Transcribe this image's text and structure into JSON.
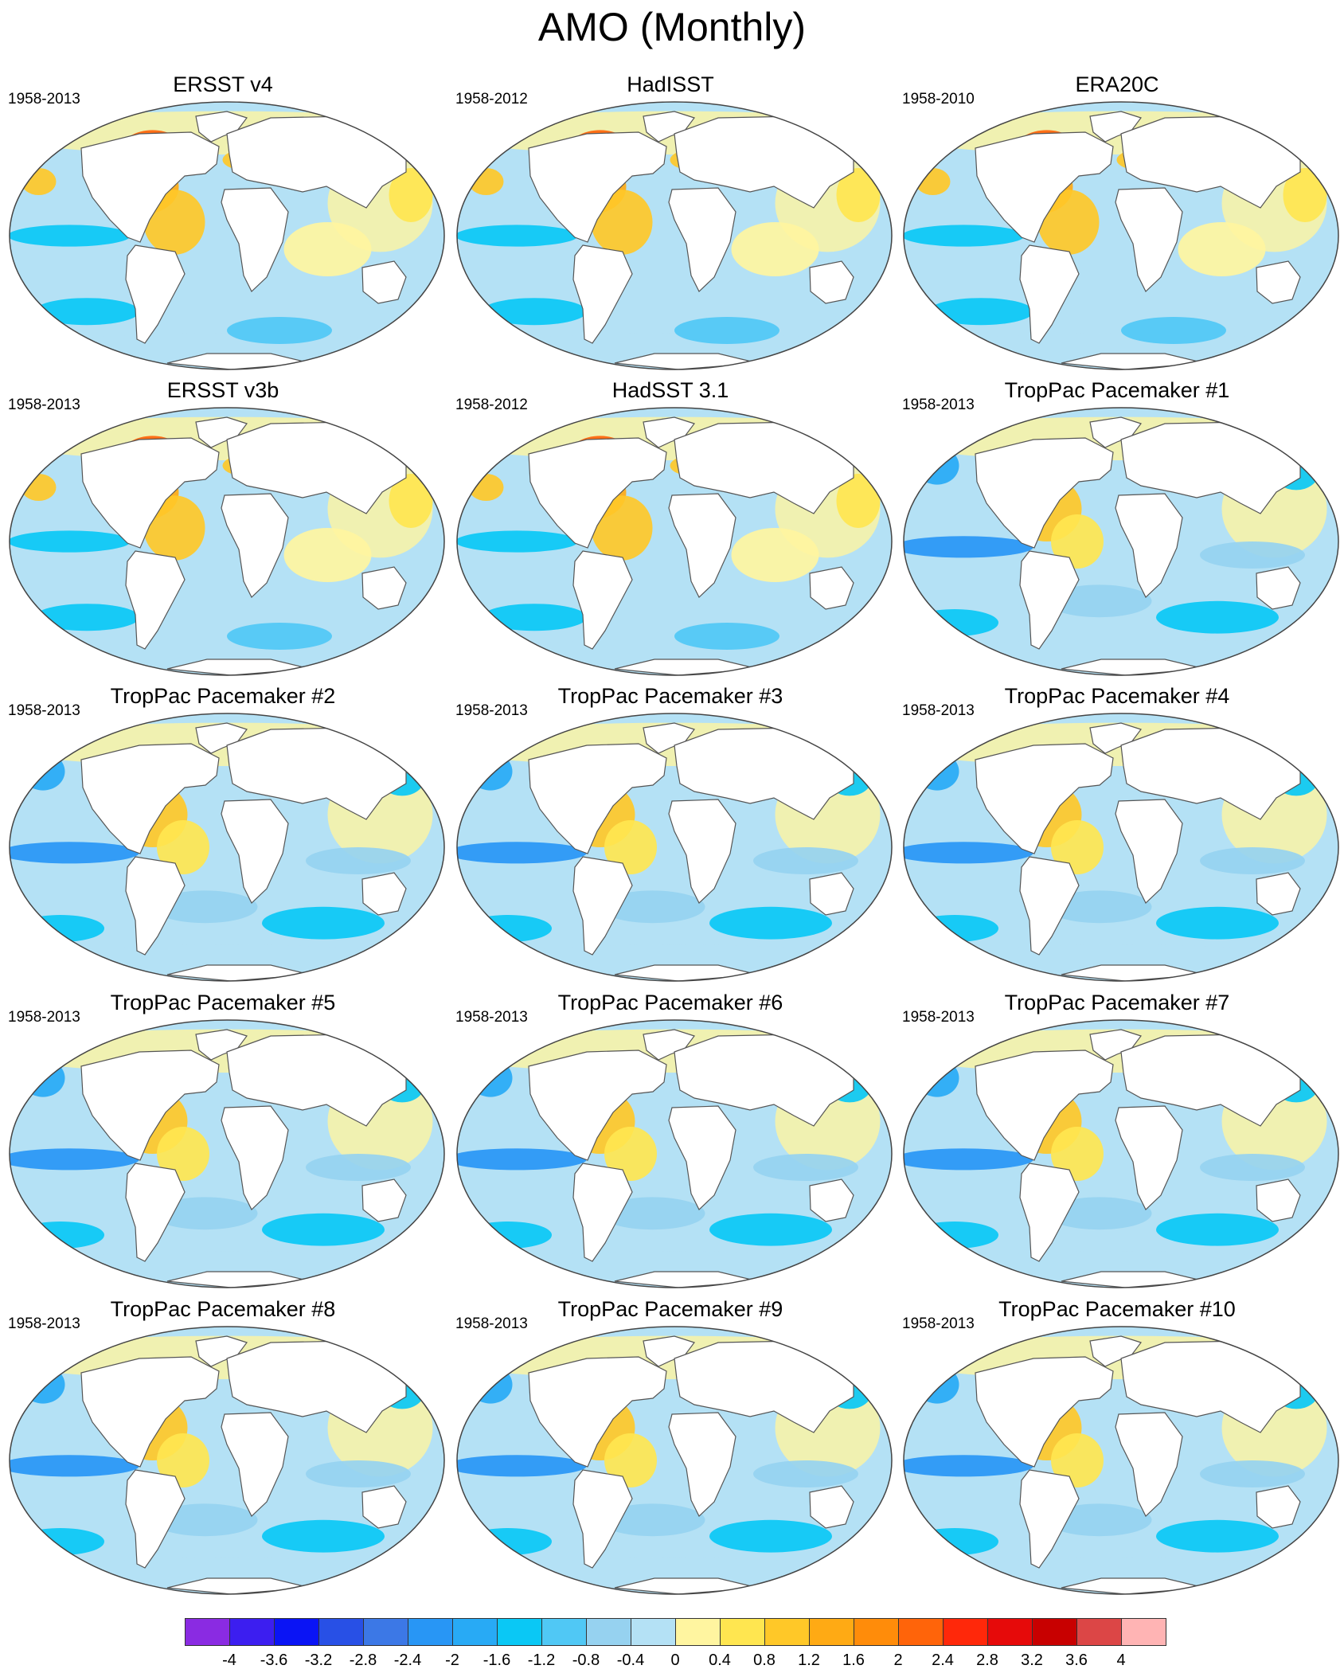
{
  "title": "AMO (Monthly)",
  "panels": [
    {
      "title": "ERSST v4",
      "period": "1958-2013"
    },
    {
      "title": "HadISST",
      "period": "1958-2012"
    },
    {
      "title": "ERA20C",
      "period": "1958-2010"
    },
    {
      "title": "ERSST v3b",
      "period": "1958-2013"
    },
    {
      "title": "HadSST 3.1",
      "period": "1958-2012"
    },
    {
      "title": "TropPac Pacemaker #1",
      "period": "1958-2013"
    },
    {
      "title": "TropPac Pacemaker #2",
      "period": "1958-2013"
    },
    {
      "title": "TropPac Pacemaker #3",
      "period": "1958-2013"
    },
    {
      "title": "TropPac Pacemaker #4",
      "period": "1958-2013"
    },
    {
      "title": "TropPac Pacemaker #5",
      "period": "1958-2013"
    },
    {
      "title": "TropPac Pacemaker #6",
      "period": "1958-2013"
    },
    {
      "title": "TropPac Pacemaker #7",
      "period": "1958-2013"
    },
    {
      "title": "TropPac Pacemaker #8",
      "period": "1958-2013"
    },
    {
      "title": "TropPac Pacemaker #9",
      "period": "1958-2013"
    },
    {
      "title": "TropPac Pacemaker #10",
      "period": "1958-2013"
    }
  ],
  "colorbar": {
    "labels": [
      "-4",
      "-3.6",
      "-3.2",
      "-2.8",
      "-2.4",
      "-2",
      "-1.6",
      "-1.2",
      "-0.8",
      "-0.4",
      "0",
      "0.4",
      "0.8",
      "1.2",
      "1.6",
      "2",
      "2.4",
      "2.8",
      "3.2",
      "3.6",
      "4"
    ],
    "colors": [
      "#8a2be2",
      "#3c1ef0",
      "#0a14f5",
      "#2850e6",
      "#3c78e6",
      "#2896f5",
      "#28aaf5",
      "#0ac8f5",
      "#50c8f5",
      "#96d2f0",
      "#b4e1f5",
      "#fff5a0",
      "#ffe650",
      "#ffc828",
      "#ffaa14",
      "#ff8c0a",
      "#ff640a",
      "#ff280a",
      "#e60a0a",
      "#c80000",
      "#dc4646",
      "#ffb4b4"
    ]
  },
  "map_colors": {
    "land": "#ffffff",
    "coast": "#555555",
    "ocean_background": "#b4e1f5"
  }
}
